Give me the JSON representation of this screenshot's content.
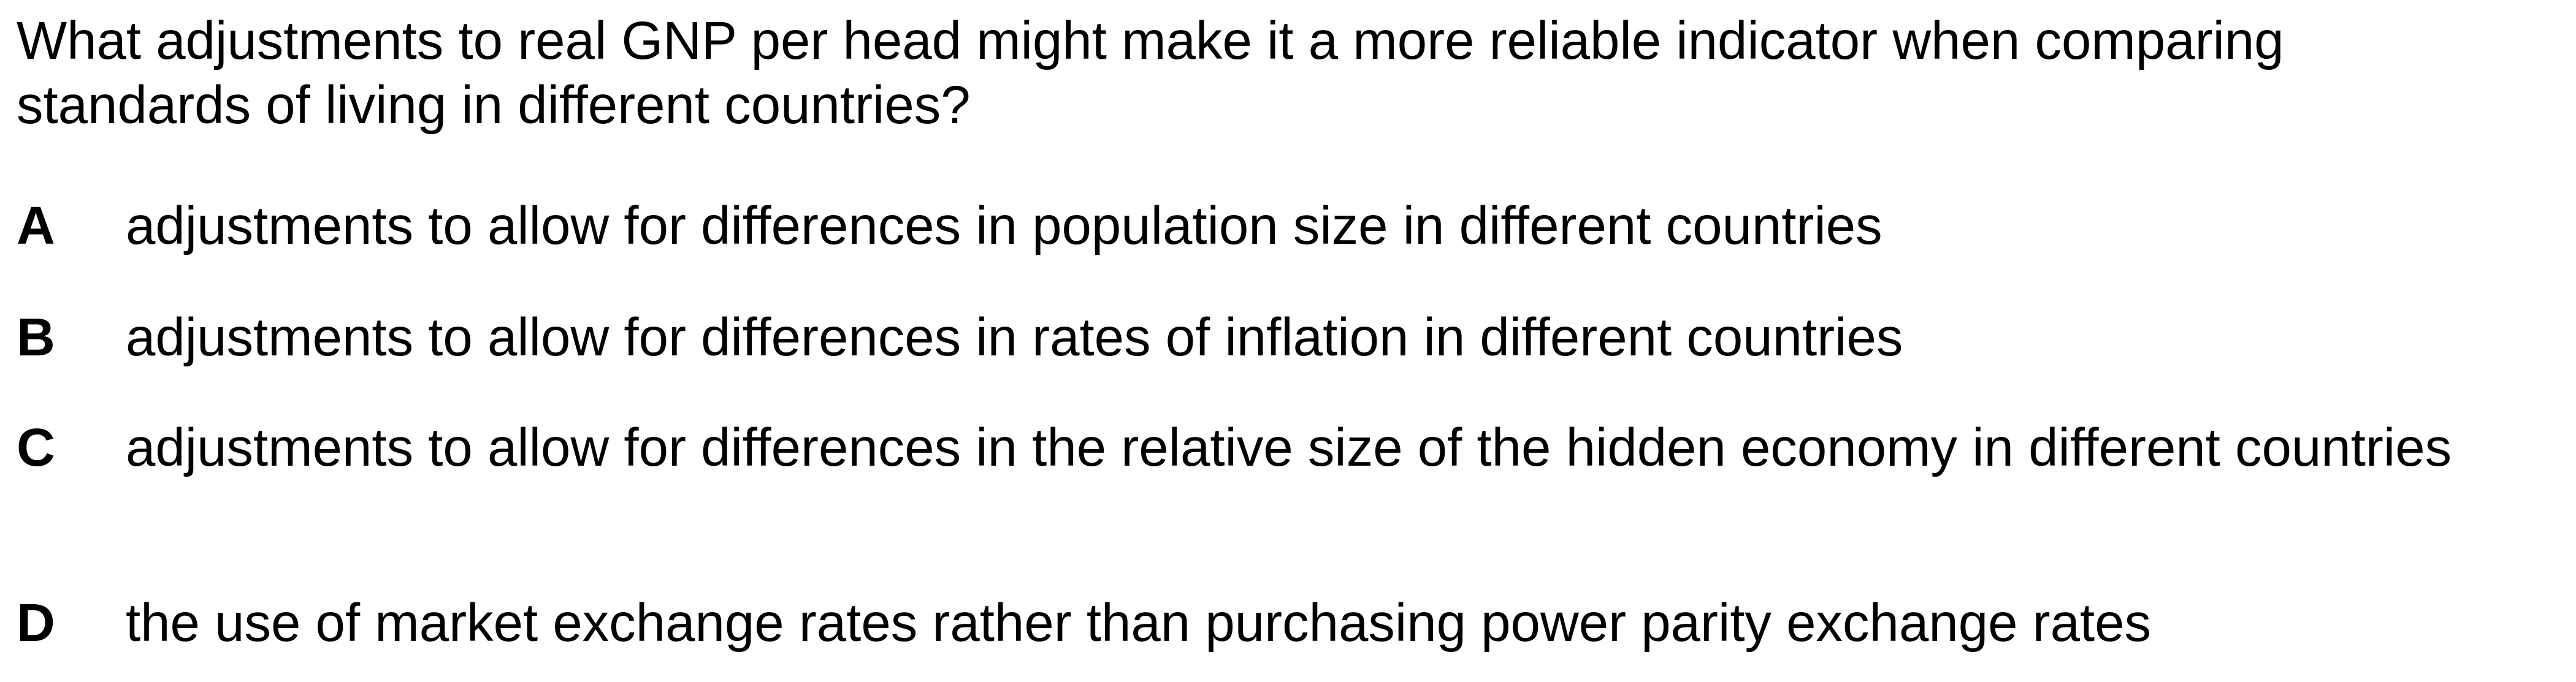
{
  "question": {
    "text": "What adjustments to real GNP per head might make it a more reliable indicator when comparing standards of living in different countries?"
  },
  "options": [
    {
      "letter": "A",
      "text": "adjustments to allow for differences in population size in different countries"
    },
    {
      "letter": "B",
      "text": "adjustments to allow for differences in rates of inflation in different countries"
    },
    {
      "letter": "C",
      "text": "adjustments to allow for differences in the relative size of the hidden economy in different countries"
    },
    {
      "letter": "D",
      "text": "the use of market exchange rates rather than purchasing power parity exchange rates"
    }
  ]
}
